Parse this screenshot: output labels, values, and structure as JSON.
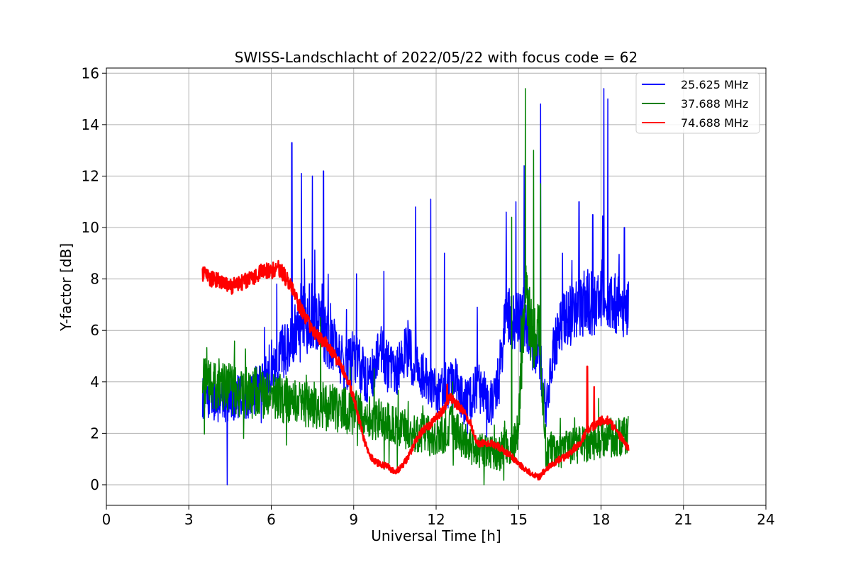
{
  "chart_data": {
    "type": "line",
    "title": "SWISS-Landschlacht of 2022/05/22 with focus code = 62",
    "xlabel": "Universal Time [h]",
    "ylabel": "Y-factor [dB]",
    "xlim": [
      0,
      24
    ],
    "ylim": [
      -0.8,
      16.2
    ],
    "xticks": [
      0,
      3,
      6,
      9,
      12,
      15,
      18,
      21,
      24
    ],
    "yticks": [
      0,
      2,
      4,
      6,
      8,
      10,
      12,
      14,
      16
    ],
    "grid": true,
    "legend_position": "top-right",
    "series": [
      {
        "name": "25.625 MHz",
        "color": "#0000ff",
        "x": [
          3.5,
          3.75,
          4.0,
          4.25,
          4.5,
          4.75,
          5.0,
          5.25,
          5.5,
          5.75,
          6.0,
          6.25,
          6.5,
          6.75,
          7.0,
          7.25,
          7.5,
          7.75,
          8.0,
          8.25,
          8.5,
          8.75,
          9.0,
          9.25,
          9.5,
          9.75,
          10.0,
          10.25,
          10.5,
          10.75,
          11.0,
          11.25,
          11.5,
          11.75,
          12.0,
          12.25,
          12.5,
          12.75,
          13.0,
          13.25,
          13.5,
          13.75,
          14.0,
          14.25,
          14.5,
          14.75,
          15.0,
          15.25,
          15.5,
          15.75,
          16.0,
          16.25,
          16.5,
          16.75,
          17.0,
          17.25,
          17.5,
          17.75,
          18.0,
          18.25,
          18.5,
          18.75,
          19.0
        ],
        "y": [
          3.4,
          3.5,
          3.3,
          3.3,
          3.4,
          3.4,
          3.3,
          3.5,
          3.8,
          4.0,
          4.6,
          5.0,
          5.3,
          5.7,
          6.6,
          6.6,
          6.6,
          6.3,
          5.8,
          5.5,
          5.0,
          4.5,
          5.0,
          4.6,
          4.1,
          4.4,
          5.2,
          4.6,
          4.1,
          5.0,
          5.3,
          4.5,
          4.3,
          3.8,
          3.6,
          3.7,
          4.0,
          3.8,
          3.2,
          3.3,
          3.8,
          3.5,
          3.0,
          4.0,
          6.2,
          6.5,
          6.2,
          6.5,
          5.5,
          5.2,
          3.0,
          5.0,
          6.0,
          6.5,
          6.5,
          7.0,
          7.2,
          7.0,
          7.5,
          7.3,
          7.0,
          7.0,
          7.0
        ],
        "peak_x": [
          4.4,
          6.2,
          6.75,
          7.1,
          7.5,
          7.9,
          9.1,
          10.1,
          11.25,
          11.8,
          12.3,
          13.5,
          14.55,
          14.9,
          15.2,
          15.8,
          16.6,
          17.2,
          17.7,
          18.1,
          18.25,
          18.85
        ],
        "peak_y": [
          0.0,
          7.8,
          13.3,
          12.1,
          12.0,
          12.2,
          8.2,
          8.3,
          10.8,
          11.1,
          9.0,
          6.9,
          10.6,
          11.0,
          12.4,
          14.8,
          9.0,
          11.0,
          10.5,
          15.4,
          15.0,
          10.0
        ]
      },
      {
        "name": "37.688 MHz",
        "color": "#008000",
        "x": [
          3.5,
          3.75,
          4.0,
          4.25,
          4.5,
          4.75,
          5.0,
          5.25,
          5.5,
          5.75,
          6.0,
          6.25,
          6.5,
          6.75,
          7.0,
          7.25,
          7.5,
          7.75,
          8.0,
          8.25,
          8.5,
          8.75,
          9.0,
          9.25,
          9.5,
          9.75,
          10.0,
          10.25,
          10.5,
          10.75,
          11.0,
          11.25,
          11.5,
          11.75,
          12.0,
          12.25,
          12.5,
          12.75,
          13.0,
          13.25,
          13.5,
          13.75,
          14.0,
          14.25,
          14.5,
          14.75,
          15.0,
          15.25,
          15.5,
          15.75,
          16.0,
          16.25,
          16.5,
          16.75,
          17.0,
          17.25,
          17.5,
          17.75,
          18.0,
          18.25,
          18.5,
          18.75,
          19.0
        ],
        "y": [
          3.9,
          3.9,
          3.8,
          3.8,
          3.7,
          3.6,
          3.6,
          3.5,
          3.6,
          3.5,
          3.4,
          3.4,
          3.3,
          3.3,
          3.2,
          3.2,
          3.1,
          3.1,
          3.0,
          3.0,
          2.9,
          2.9,
          2.8,
          2.7,
          2.6,
          2.6,
          2.5,
          2.4,
          2.3,
          2.2,
          2.1,
          2.0,
          2.0,
          1.9,
          1.9,
          2.0,
          2.3,
          2.0,
          1.7,
          1.5,
          1.4,
          1.3,
          1.2,
          1.1,
          1.6,
          1.2,
          2.5,
          8.0,
          5.5,
          6.0,
          1.2,
          1.4,
          1.3,
          1.4,
          1.5,
          1.6,
          1.6,
          1.7,
          1.8,
          1.8,
          1.9,
          1.9,
          2.0
        ],
        "peak_x": [
          3.6,
          4.1,
          5.6,
          7.8,
          12.6,
          14.75,
          15.25,
          15.55,
          15.8
        ],
        "peak_y": [
          4.9,
          4.9,
          4.6,
          6.5,
          4.0,
          10.4,
          15.4,
          13.0,
          11.7
        ]
      },
      {
        "name": "74.688 MHz",
        "color": "#ff0000",
        "x": [
          3.5,
          3.75,
          4.0,
          4.25,
          4.5,
          4.75,
          5.0,
          5.25,
          5.5,
          5.75,
          6.0,
          6.25,
          6.5,
          6.75,
          7.0,
          7.25,
          7.5,
          7.75,
          8.0,
          8.25,
          8.5,
          8.75,
          9.0,
          9.25,
          9.5,
          9.75,
          10.0,
          10.25,
          10.5,
          10.75,
          11.0,
          11.25,
          11.5,
          11.75,
          12.0,
          12.25,
          12.5,
          12.75,
          13.0,
          13.25,
          13.5,
          13.75,
          14.0,
          14.25,
          14.5,
          14.75,
          15.0,
          15.25,
          15.5,
          15.75,
          16.0,
          16.25,
          16.5,
          16.75,
          17.0,
          17.25,
          17.5,
          17.75,
          18.0,
          18.25,
          18.5,
          18.75,
          19.0
        ],
        "y": [
          8.2,
          8.0,
          8.0,
          7.8,
          7.7,
          7.8,
          7.9,
          8.0,
          8.2,
          8.3,
          8.3,
          8.4,
          8.1,
          7.6,
          7.0,
          6.5,
          6.0,
          5.7,
          5.5,
          5.1,
          4.7,
          4.2,
          3.4,
          2.3,
          1.3,
          0.9,
          0.8,
          0.7,
          0.5,
          0.7,
          1.1,
          1.7,
          2.1,
          2.3,
          2.6,
          2.9,
          3.4,
          3.1,
          2.9,
          2.4,
          1.6,
          1.6,
          1.6,
          1.5,
          1.3,
          1.1,
          0.8,
          0.6,
          0.4,
          0.3,
          0.6,
          0.8,
          1.0,
          1.1,
          1.4,
          1.6,
          2.1,
          2.3,
          2.5,
          2.5,
          2.2,
          1.8,
          1.4
        ],
        "peak_x": [
          12.4,
          17.5,
          17.75
        ],
        "peak_y": [
          3.9,
          4.6,
          3.8
        ]
      }
    ]
  }
}
